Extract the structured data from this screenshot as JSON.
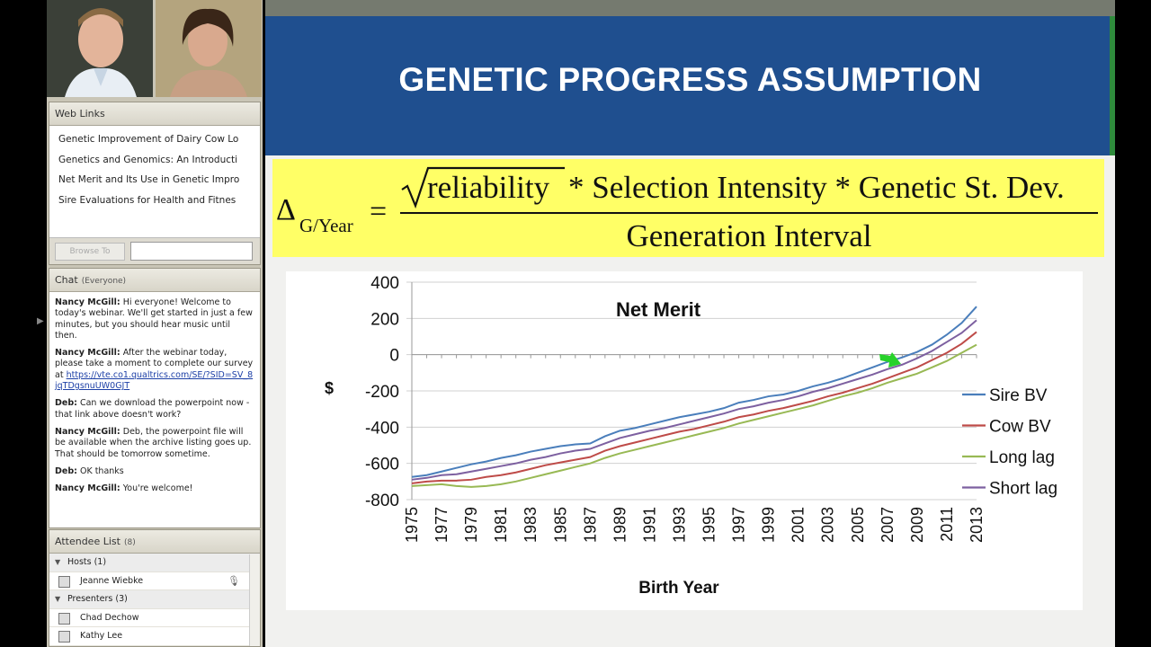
{
  "web_links": {
    "title": "Web Links",
    "items": [
      "Genetic Improvement of Dairy Cow Lo",
      "Genetics and Genomics: An Introducti",
      "Net Merit and Its Use in Genetic Impro",
      "Sire Evaluations for Health and Fitnes"
    ],
    "browse_button": "Browse To"
  },
  "chat": {
    "title": "Chat",
    "scope": "(Everyone)",
    "messages": [
      {
        "sender": "Nancy McGill:",
        "text": "Hi everyone! Welcome to today's webinar. We'll get started in just a few minutes, but you should hear music until then."
      },
      {
        "sender": "Nancy McGill:",
        "text": "After the webinar today, please take a moment to complete our survey at",
        "link": "https://vte.co1.qualtrics.com/SE/?SID=SV_8jqTDgsnuUW0GJT"
      },
      {
        "sender": "Deb:",
        "text": "Can we download the powerpoint now - that link above doesn't work?"
      },
      {
        "sender": "Nancy McGill:",
        "text": "Deb, the powerpoint file will be available when the archive listing goes up. That should be tomorrow sometime."
      },
      {
        "sender": "Deb:",
        "text": "OK thanks"
      },
      {
        "sender": "Nancy McGill:",
        "text": "You're welcome!"
      }
    ]
  },
  "attendees": {
    "title": "Attendee List",
    "count": "(8)",
    "hosts_label": "Hosts (1)",
    "host_name": "Jeanne Wiebke",
    "presenters_label": "Presenters (3)",
    "presenters": [
      "Chad Dechow",
      "Kathy Lee"
    ]
  },
  "slide": {
    "title": "GENETIC PROGRESS ASSUMPTION",
    "formula": {
      "delta": "Δ",
      "subscript": "G/Year",
      "equals": "=",
      "radicand": "reliability",
      "numerator_rest": "* Selection Intensity * Genetic St. Dev.",
      "denominator": "Generation Interval"
    }
  },
  "chart_data": {
    "type": "line",
    "title": "Net Merit",
    "xlabel": "Birth Year",
    "ylabel": "$",
    "ylim": [
      -800,
      400
    ],
    "yticks": [
      400,
      200,
      0,
      -200,
      -400,
      -600,
      -800
    ],
    "x": [
      1975,
      1976,
      1977,
      1978,
      1979,
      1980,
      1981,
      1982,
      1983,
      1984,
      1985,
      1986,
      1987,
      1988,
      1989,
      1990,
      1991,
      1992,
      1993,
      1994,
      1995,
      1996,
      1997,
      1998,
      1999,
      2000,
      2001,
      2002,
      2003,
      2004,
      2005,
      2006,
      2007,
      2008,
      2009,
      2010,
      2011,
      2012,
      2013
    ],
    "xticks": [
      1975,
      1977,
      1979,
      1981,
      1983,
      1985,
      1987,
      1989,
      1991,
      1993,
      1995,
      1997,
      1999,
      2001,
      2003,
      2005,
      2007,
      2009,
      2011,
      2013
    ],
    "legend_position": "right",
    "series": [
      {
        "name": "Sire BV",
        "color": "#4a7ebb",
        "values": [
          -675,
          -665,
          -645,
          -625,
          -605,
          -590,
          -570,
          -555,
          -535,
          -520,
          -505,
          -495,
          -490,
          -450,
          -420,
          -405,
          -385,
          -365,
          -345,
          -330,
          -315,
          -295,
          -265,
          -250,
          -230,
          -220,
          -200,
          -175,
          -155,
          -130,
          -100,
          -70,
          -40,
          -15,
          15,
          55,
          110,
          175,
          265
        ]
      },
      {
        "name": "Cow BV",
        "color": "#be4b48",
        "values": [
          -710,
          -700,
          -695,
          -695,
          -690,
          -675,
          -665,
          -650,
          -630,
          -610,
          -595,
          -580,
          -565,
          -530,
          -505,
          -485,
          -465,
          -445,
          -425,
          -410,
          -390,
          -370,
          -345,
          -330,
          -310,
          -295,
          -275,
          -255,
          -230,
          -210,
          -185,
          -160,
          -130,
          -100,
          -70,
          -30,
          10,
          60,
          125
        ]
      },
      {
        "name": "Long lag",
        "color": "#98b954",
        "values": [
          -725,
          -720,
          -715,
          -725,
          -730,
          -725,
          -715,
          -700,
          -680,
          -660,
          -640,
          -620,
          -600,
          -570,
          -545,
          -525,
          -505,
          -485,
          -465,
          -445,
          -425,
          -405,
          -380,
          -360,
          -340,
          -320,
          -300,
          -280,
          -255,
          -230,
          -210,
          -185,
          -155,
          -130,
          -105,
          -70,
          -35,
          10,
          55
        ]
      },
      {
        "name": "Short lag",
        "color": "#7d60a0",
        "values": [
          -690,
          -680,
          -665,
          -660,
          -645,
          -630,
          -615,
          -600,
          -580,
          -565,
          -545,
          -530,
          -520,
          -490,
          -460,
          -440,
          -420,
          -405,
          -385,
          -365,
          -345,
          -325,
          -300,
          -285,
          -265,
          -250,
          -230,
          -205,
          -185,
          -160,
          -135,
          -110,
          -80,
          -55,
          -20,
          20,
          70,
          120,
          190
        ]
      }
    ]
  }
}
